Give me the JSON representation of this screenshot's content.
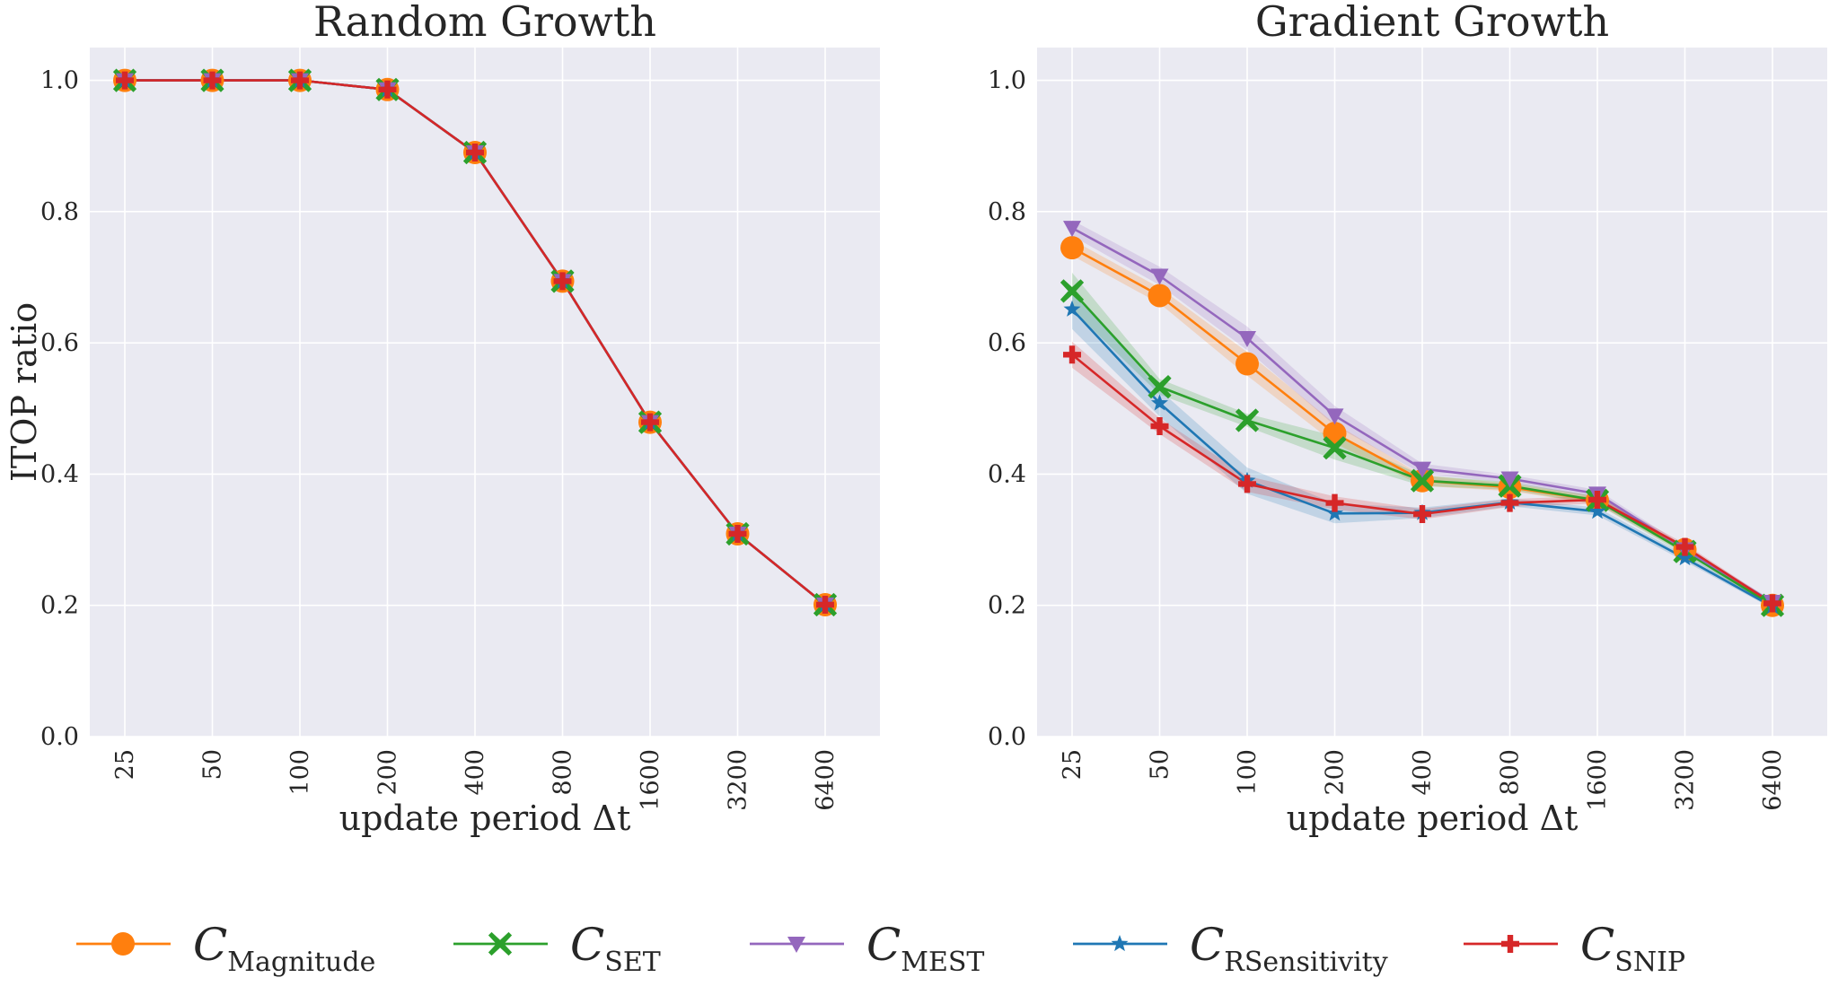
{
  "chart_data": [
    {
      "type": "line",
      "title": "Random Growth",
      "xlabel": "update period Δt",
      "ylabel": "ITOP ratio",
      "categories": [
        "25",
        "50",
        "100",
        "200",
        "400",
        "800",
        "1600",
        "3200",
        "6400"
      ],
      "ylim": [
        0.0,
        1.05
      ],
      "yticks": [
        "0.0",
        "0.2",
        "0.4",
        "0.6",
        "0.8",
        "1.0"
      ],
      "grid": true,
      "series": [
        {
          "name": "C_Magnitude",
          "color": "#ff7f0e",
          "marker": "circle",
          "values": [
            1.0,
            1.0,
            1.0,
            0.986,
            0.89,
            0.694,
            0.479,
            0.309,
            0.201
          ],
          "band": [
            0,
            0,
            0,
            0,
            0,
            0,
            0,
            0,
            0
          ]
        },
        {
          "name": "C_SET",
          "color": "#2ca02c",
          "marker": "x",
          "values": [
            1.0,
            1.0,
            1.0,
            0.986,
            0.89,
            0.694,
            0.479,
            0.309,
            0.201
          ],
          "band": [
            0,
            0,
            0,
            0,
            0,
            0,
            0,
            0,
            0
          ]
        },
        {
          "name": "C_MEST",
          "color": "#9467bd",
          "marker": "triangle",
          "values": [
            1.0,
            1.0,
            1.0,
            0.986,
            0.89,
            0.694,
            0.479,
            0.309,
            0.201
          ],
          "band": [
            0,
            0,
            0,
            0,
            0,
            0,
            0,
            0,
            0
          ]
        },
        {
          "name": "C_RSensitivity",
          "color": "#1f77b4",
          "marker": "star",
          "values": [
            1.0,
            1.0,
            1.0,
            0.986,
            0.89,
            0.694,
            0.479,
            0.309,
            0.201
          ],
          "band": [
            0,
            0,
            0,
            0,
            0,
            0,
            0,
            0,
            0
          ]
        },
        {
          "name": "C_SNIP",
          "color": "#d62728",
          "marker": "plus",
          "values": [
            1.0,
            1.0,
            1.0,
            0.986,
            0.89,
            0.694,
            0.479,
            0.309,
            0.201
          ],
          "band": [
            0,
            0,
            0,
            0,
            0,
            0,
            0,
            0,
            0
          ]
        }
      ]
    },
    {
      "type": "line",
      "title": "Gradient Growth",
      "xlabel": "update period Δt",
      "ylabel": "",
      "categories": [
        "25",
        "50",
        "100",
        "200",
        "400",
        "800",
        "1600",
        "3200",
        "6400"
      ],
      "ylim": [
        0.0,
        1.05
      ],
      "yticks": [
        "0.0",
        "0.2",
        "0.4",
        "0.6",
        "0.8",
        "1.0"
      ],
      "grid": true,
      "series": [
        {
          "name": "C_Magnitude",
          "color": "#ff7f0e",
          "marker": "circle",
          "values": [
            0.745,
            0.672,
            0.568,
            0.462,
            0.39,
            0.38,
            0.36,
            0.285,
            0.2
          ],
          "band": [
            0.012,
            0.012,
            0.018,
            0.015,
            0.008,
            0.006,
            0.006,
            0.005,
            0.003
          ]
        },
        {
          "name": "C_SET",
          "color": "#2ca02c",
          "marker": "x",
          "values": [
            0.679,
            0.533,
            0.482,
            0.44,
            0.39,
            0.382,
            0.36,
            0.282,
            0.2
          ],
          "band": [
            0.028,
            0.012,
            0.01,
            0.018,
            0.008,
            0.006,
            0.006,
            0.005,
            0.003
          ]
        },
        {
          "name": "C_MEST",
          "color": "#9467bd",
          "marker": "triangle",
          "values": [
            0.775,
            0.702,
            0.607,
            0.489,
            0.408,
            0.393,
            0.37,
            0.285,
            0.205
          ],
          "band": [
            0.012,
            0.014,
            0.018,
            0.015,
            0.008,
            0.006,
            0.006,
            0.005,
            0.003
          ]
        },
        {
          "name": "C_RSensitivity",
          "color": "#1f77b4",
          "marker": "star",
          "values": [
            0.651,
            0.508,
            0.39,
            0.34,
            0.341,
            0.357,
            0.343,
            0.272,
            0.198
          ],
          "band": [
            0.03,
            0.02,
            0.02,
            0.015,
            0.008,
            0.006,
            0.006,
            0.005,
            0.003
          ]
        },
        {
          "name": "C_SNIP",
          "color": "#d62728",
          "marker": "plus",
          "values": [
            0.582,
            0.473,
            0.385,
            0.356,
            0.339,
            0.356,
            0.361,
            0.289,
            0.203
          ],
          "band": [
            0.02,
            0.012,
            0.012,
            0.01,
            0.008,
            0.006,
            0.006,
            0.005,
            0.003
          ]
        }
      ]
    }
  ],
  "legend": {
    "placement": "bottom",
    "entries": [
      {
        "symbol": "C",
        "sub": "Magnitude",
        "color": "#ff7f0e",
        "marker": "circle"
      },
      {
        "symbol": "C",
        "sub": "SET",
        "color": "#2ca02c",
        "marker": "x"
      },
      {
        "symbol": "C",
        "sub": "MEST",
        "color": "#9467bd",
        "marker": "triangle"
      },
      {
        "symbol": "C",
        "sub": "RSensitivity",
        "color": "#1f77b4",
        "marker": "star"
      },
      {
        "symbol": "C",
        "sub": "SNIP",
        "color": "#d62728",
        "marker": "plus"
      }
    ]
  }
}
